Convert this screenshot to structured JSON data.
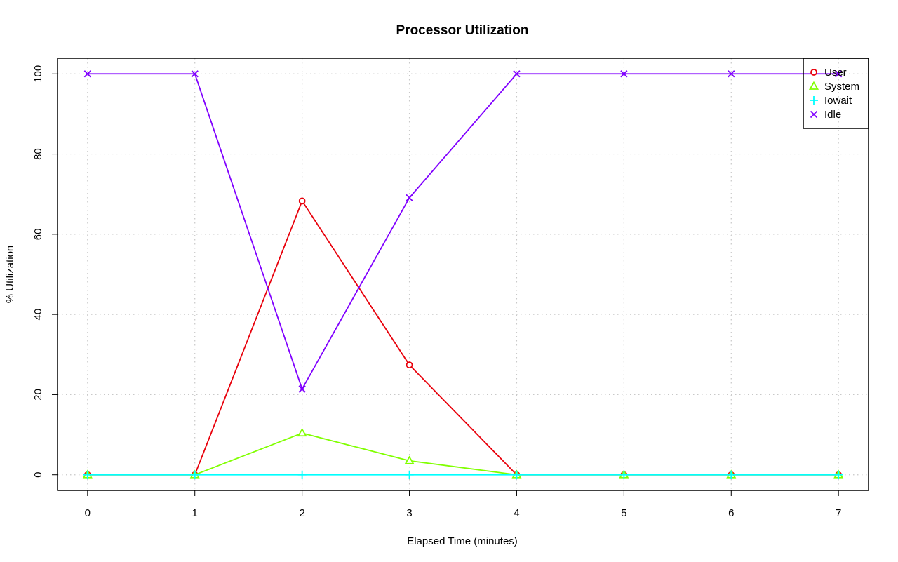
{
  "chart_data": {
    "type": "line",
    "title": "Processor Utilization",
    "xlabel": "Elapsed Time (minutes)",
    "ylabel": "% Utilization",
    "x": [
      0,
      1,
      2,
      3,
      4,
      5,
      6,
      7
    ],
    "xticks": [
      0,
      1,
      2,
      3,
      4,
      5,
      6,
      7
    ],
    "yticks": [
      0,
      20,
      40,
      60,
      80,
      100
    ],
    "xlim": [
      -0.28,
      7.28
    ],
    "ylim": [
      -3.9,
      103.9
    ],
    "grid": true,
    "legend_position": "top-right",
    "series": [
      {
        "name": "User",
        "marker": "circle",
        "color": "#e8000b",
        "values": [
          0,
          0,
          68.3,
          27.4,
          0,
          0,
          0,
          0
        ]
      },
      {
        "name": "System",
        "marker": "triangle",
        "color": "#80ff00",
        "values": [
          0,
          0,
          10.4,
          3.5,
          0,
          0,
          0,
          0
        ]
      },
      {
        "name": "Iowait",
        "marker": "plus",
        "color": "#00ffff",
        "values": [
          0,
          0,
          0,
          0,
          0,
          0,
          0,
          0
        ]
      },
      {
        "name": "Idle",
        "marker": "x",
        "color": "#8000ff",
        "values": [
          100,
          100,
          21.4,
          69.1,
          100,
          100,
          100,
          100
        ]
      }
    ]
  }
}
